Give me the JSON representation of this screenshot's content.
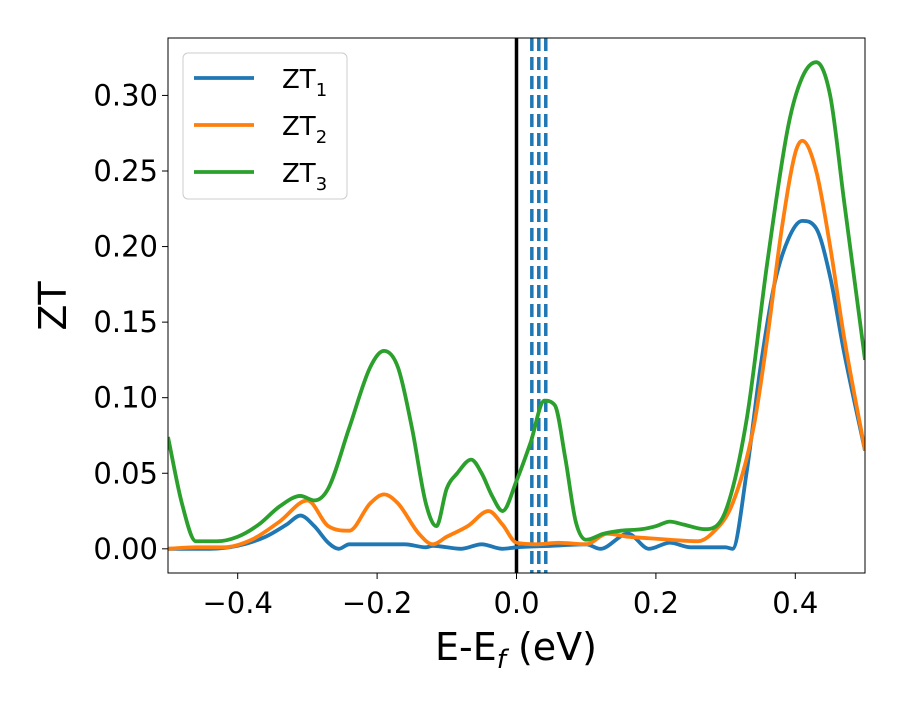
{
  "chart_data": {
    "type": "line",
    "title": "",
    "xlabel_main": "E-E",
    "xlabel_sub": "f",
    "xlabel_unit": " (eV)",
    "ylabel": "ZT",
    "xlim": [
      -0.5,
      0.5
    ],
    "ylim": [
      -0.016,
      0.338
    ],
    "x_ticks": [
      -0.4,
      -0.2,
      0.0,
      0.2,
      0.4
    ],
    "x_tick_labels": [
      "−0.4",
      "−0.2",
      "0.0",
      "0.2",
      "0.4"
    ],
    "y_ticks": [
      0.0,
      0.05,
      0.1,
      0.15,
      0.2,
      0.25,
      0.3
    ],
    "y_tick_labels": [
      "0.00",
      "0.05",
      "0.10",
      "0.15",
      "0.20",
      "0.25",
      "0.30"
    ],
    "grid": false,
    "legend_placement": "top-left",
    "fermi_line": {
      "x": 0.0,
      "color": "#000000"
    },
    "dashed_lines": {
      "x": [
        0.022,
        0.032,
        0.042
      ],
      "color": "#1f77b4"
    },
    "series": [
      {
        "name": "ZT",
        "subscript": "1",
        "color": "#1f77b4",
        "x": [
          -0.5,
          -0.44,
          -0.4,
          -0.36,
          -0.33,
          -0.31,
          -0.29,
          -0.27,
          -0.255,
          -0.24,
          -0.2,
          -0.16,
          -0.13,
          -0.12,
          -0.08,
          -0.05,
          -0.02,
          0.0,
          0.05,
          0.1,
          0.12,
          0.16,
          0.19,
          0.22,
          0.25,
          0.28,
          0.3,
          0.31,
          0.33,
          0.35,
          0.37,
          0.39,
          0.41,
          0.43,
          0.45,
          0.47,
          0.5
        ],
        "y": [
          0.0,
          0.0,
          0.002,
          0.008,
          0.016,
          0.022,
          0.015,
          0.004,
          0.0,
          0.003,
          0.003,
          0.003,
          0.001,
          0.002,
          0.0,
          0.003,
          0.0,
          0.001,
          0.002,
          0.003,
          0.0,
          0.01,
          0.0,
          0.004,
          0.001,
          0.001,
          0.001,
          0.0,
          0.05,
          0.12,
          0.175,
          0.205,
          0.217,
          0.212,
          0.18,
          0.13,
          0.065
        ]
      },
      {
        "name": "ZT",
        "subscript": "2",
        "color": "#ff7f0e",
        "x": [
          -0.5,
          -0.46,
          -0.42,
          -0.38,
          -0.34,
          -0.3,
          -0.27,
          -0.24,
          -0.21,
          -0.19,
          -0.17,
          -0.14,
          -0.12,
          -0.1,
          -0.07,
          -0.04,
          -0.02,
          0.0,
          0.03,
          0.06,
          0.1,
          0.13,
          0.16,
          0.19,
          0.22,
          0.26,
          0.28,
          0.31,
          0.34,
          0.36,
          0.38,
          0.4,
          0.41,
          0.43,
          0.45,
          0.47,
          0.5
        ],
        "y": [
          0.0,
          0.001,
          0.001,
          0.006,
          0.018,
          0.032,
          0.015,
          0.012,
          0.03,
          0.036,
          0.03,
          0.01,
          0.003,
          0.008,
          0.015,
          0.025,
          0.016,
          0.004,
          0.003,
          0.004,
          0.003,
          0.01,
          0.008,
          0.007,
          0.006,
          0.005,
          0.01,
          0.03,
          0.08,
          0.14,
          0.21,
          0.262,
          0.27,
          0.25,
          0.2,
          0.14,
          0.065
        ]
      },
      {
        "name": "ZT",
        "subscript": "3",
        "color": "#2ca02c",
        "x": [
          -0.5,
          -0.48,
          -0.46,
          -0.43,
          -0.4,
          -0.37,
          -0.34,
          -0.31,
          -0.29,
          -0.27,
          -0.24,
          -0.21,
          -0.19,
          -0.17,
          -0.15,
          -0.13,
          -0.115,
          -0.1,
          -0.085,
          -0.065,
          -0.05,
          -0.035,
          -0.02,
          0.0,
          0.02,
          0.04,
          0.055,
          0.07,
          0.085,
          0.1,
          0.125,
          0.15,
          0.18,
          0.2,
          0.22,
          0.24,
          0.27,
          0.3,
          0.33,
          0.36,
          0.39,
          0.41,
          0.43,
          0.45,
          0.47,
          0.5
        ],
        "y": [
          0.074,
          0.03,
          0.005,
          0.005,
          0.008,
          0.016,
          0.028,
          0.035,
          0.032,
          0.04,
          0.08,
          0.12,
          0.131,
          0.12,
          0.08,
          0.03,
          0.015,
          0.04,
          0.05,
          0.059,
          0.05,
          0.035,
          0.025,
          0.045,
          0.07,
          0.098,
          0.095,
          0.06,
          0.018,
          0.006,
          0.01,
          0.012,
          0.013,
          0.015,
          0.018,
          0.016,
          0.013,
          0.025,
          0.085,
          0.19,
          0.28,
          0.312,
          0.322,
          0.3,
          0.23,
          0.125
        ]
      }
    ]
  }
}
